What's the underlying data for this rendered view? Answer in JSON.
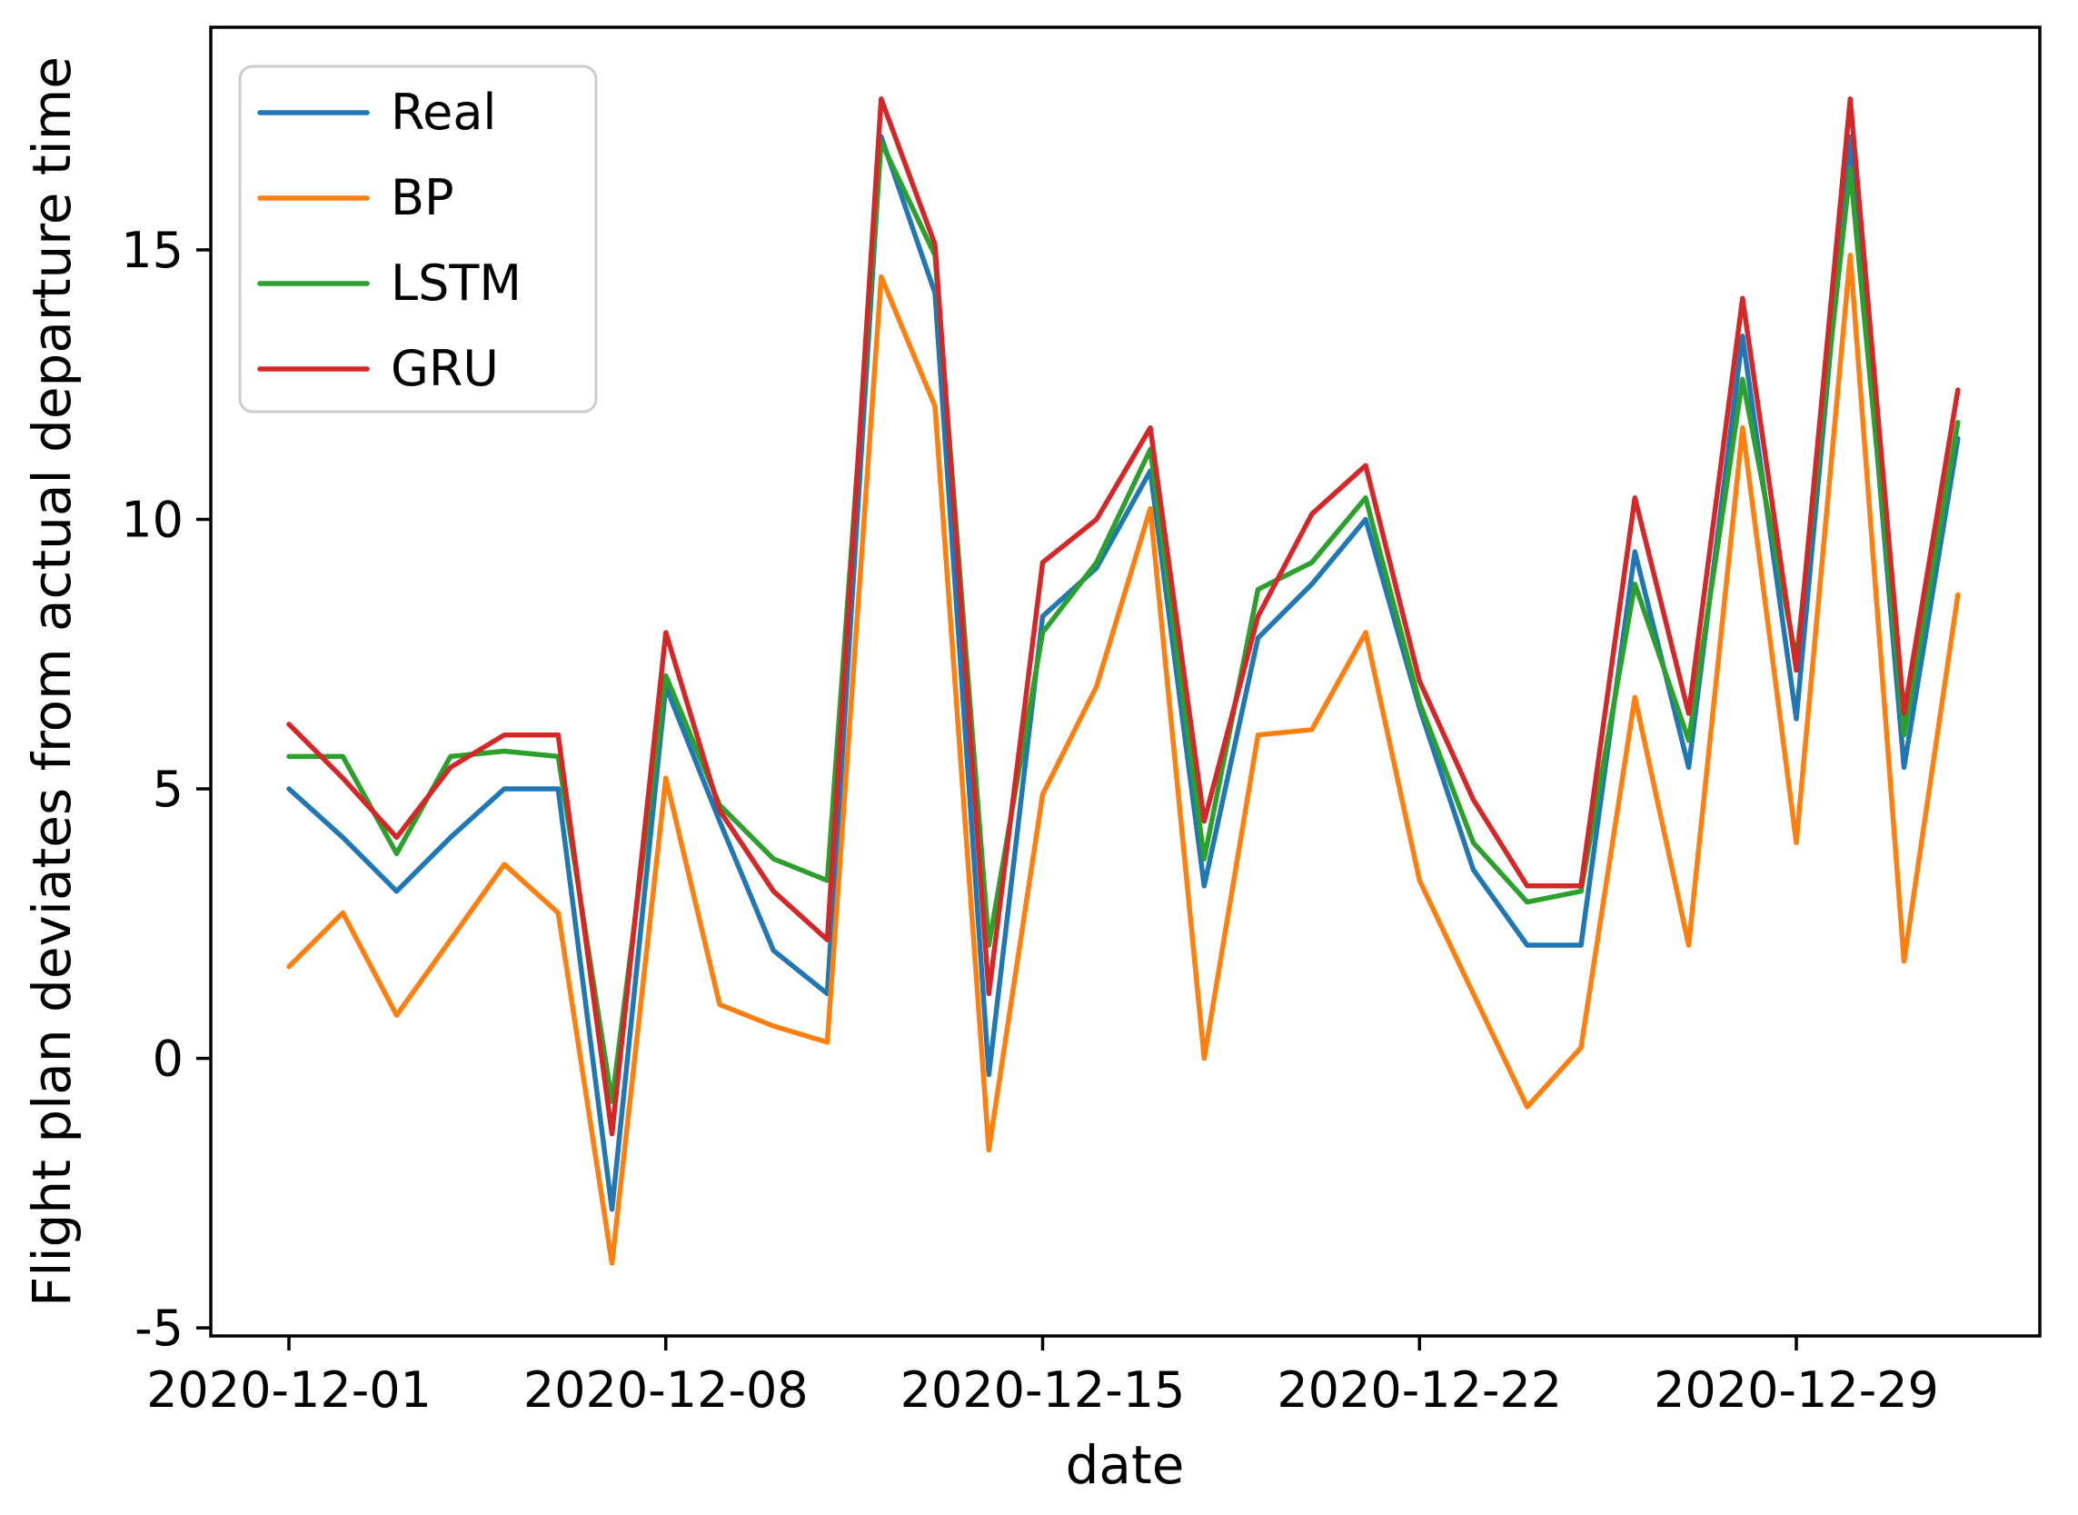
{
  "chart_data": {
    "type": "line",
    "title": "",
    "xlabel": "date",
    "ylabel": "Flight plan deviates from actual departure time",
    "x_tick_labels": [
      "2020-12-01",
      "2020-12-08",
      "2020-12-15",
      "2020-12-22",
      "2020-12-29"
    ],
    "x_tick_indices": [
      0,
      7,
      14,
      21,
      28
    ],
    "y_ticks": [
      -5,
      0,
      5,
      10,
      15
    ],
    "ylim": [
      -5.15,
      19.13
    ],
    "grid": false,
    "legend_position": "upper left",
    "dates": [
      "2020-12-01",
      "2020-12-02",
      "2020-12-03",
      "2020-12-04",
      "2020-12-05",
      "2020-12-06",
      "2020-12-07",
      "2020-12-08",
      "2020-12-09",
      "2020-12-10",
      "2020-12-11",
      "2020-12-12",
      "2020-12-13",
      "2020-12-14",
      "2020-12-15",
      "2020-12-16",
      "2020-12-17",
      "2020-12-18",
      "2020-12-19",
      "2020-12-20",
      "2020-12-21",
      "2020-12-22",
      "2020-12-23",
      "2020-12-24",
      "2020-12-25",
      "2020-12-26",
      "2020-12-27",
      "2020-12-28",
      "2020-12-29",
      "2020-12-30",
      "2020-12-31",
      "2021-01-01"
    ],
    "series": [
      {
        "name": "Real",
        "color": "#1f77b4",
        "values": [
          5.0,
          4.1,
          3.1,
          4.1,
          5.0,
          5.0,
          -2.8,
          6.9,
          4.4,
          2.0,
          1.2,
          17.1,
          14.2,
          -0.3,
          8.2,
          9.1,
          10.9,
          3.2,
          7.8,
          8.8,
          10.0,
          6.5,
          3.5,
          2.1,
          2.1,
          9.4,
          5.4,
          13.4,
          6.3,
          17.1,
          5.4,
          11.5
        ]
      },
      {
        "name": "BP",
        "color": "#ff7f0e",
        "values": [
          1.7,
          2.7,
          0.8,
          2.2,
          3.6,
          2.7,
          -3.8,
          5.2,
          1.0,
          0.6,
          0.3,
          14.5,
          12.1,
          -1.7,
          4.9,
          6.9,
          10.2,
          0.0,
          6.0,
          6.1,
          7.9,
          3.3,
          1.2,
          -0.9,
          0.2,
          6.7,
          2.1,
          11.7,
          4.0,
          14.9,
          1.8,
          8.6
        ]
      },
      {
        "name": "LSTM",
        "color": "#2ca02c",
        "values": [
          5.6,
          5.6,
          3.8,
          5.6,
          5.7,
          5.6,
          -0.8,
          7.1,
          4.7,
          3.7,
          3.3,
          17.0,
          14.9,
          2.1,
          7.9,
          9.2,
          11.3,
          3.7,
          8.7,
          9.2,
          10.4,
          6.6,
          4.0,
          2.9,
          3.1,
          8.8,
          5.9,
          12.6,
          7.4,
          16.5,
          6.0,
          11.8
        ]
      },
      {
        "name": "GRU",
        "color": "#d62728",
        "values": [
          6.2,
          5.2,
          4.1,
          5.4,
          6.0,
          6.0,
          -1.4,
          7.9,
          4.6,
          3.1,
          2.2,
          17.8,
          15.1,
          1.2,
          9.2,
          10.0,
          11.7,
          4.4,
          8.2,
          10.1,
          11.0,
          7.0,
          4.8,
          3.2,
          3.2,
          10.4,
          6.4,
          14.1,
          7.2,
          17.8,
          6.4,
          12.4
        ]
      }
    ]
  }
}
